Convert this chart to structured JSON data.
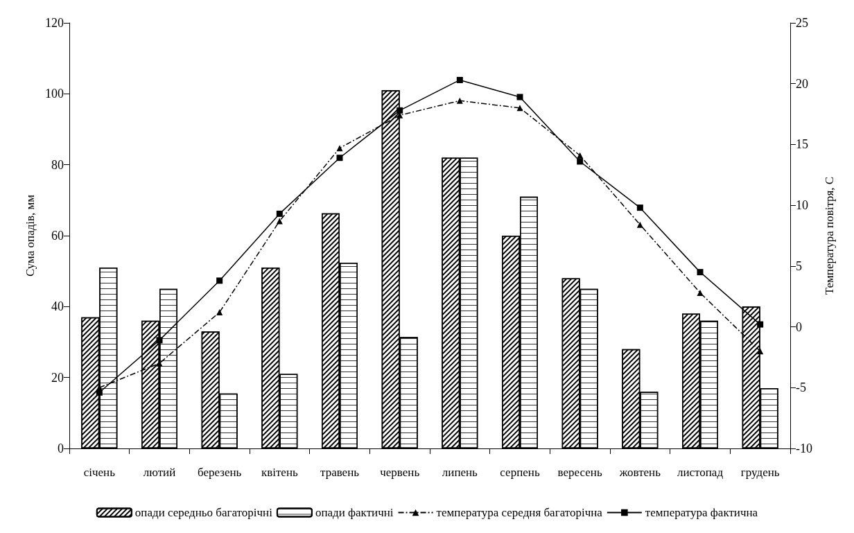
{
  "chart_data": {
    "type": "bar",
    "ylabel": "Сума опадів, мм",
    "y2label": "Температура повітря, С",
    "categories": [
      "січень",
      "лютий",
      "березень",
      "квітень",
      "травень",
      "червень",
      "липень",
      "серпень",
      "вересень",
      "жовтень",
      "листопад",
      "грудень"
    ],
    "series": [
      {
        "name": "опади середньо багаторічні",
        "axis": "y",
        "color": "#000000",
        "values": [
          37,
          36,
          33,
          51,
          66.3,
          101,
          82,
          60,
          48,
          28,
          38,
          40
        ]
      },
      {
        "name": "опади фактичні",
        "axis": "y",
        "color": "#000000",
        "values": [
          51,
          45,
          15.5,
          21,
          52.4,
          31.4,
          82,
          71,
          45,
          16,
          36,
          17
        ]
      },
      {
        "name": "температура середня багаторічна",
        "type": "line",
        "axis": "y2",
        "color": "#000000",
        "marker": "triangle",
        "line_style": "dashdot",
        "values": [
          -5,
          -3,
          1.2,
          8.7,
          14.7,
          17.4,
          18.6,
          18,
          14.1,
          8.4,
          2.8,
          -2
        ]
      },
      {
        "name": "температура фактична",
        "type": "line",
        "axis": "y2",
        "color": "#000000",
        "marker": "square",
        "line_style": "solid",
        "values": [
          -5.4,
          -1.1,
          3.8,
          9.3,
          13.9,
          17.8,
          20.3,
          18.9,
          13.6,
          9.8,
          4.5,
          0.2
        ]
      }
    ],
    "ylim": [
      0,
      120
    ],
    "yticks": [
      0,
      20,
      40,
      60,
      80,
      100,
      120
    ],
    "y2lim": [
      -10,
      25
    ],
    "y2ticks": [
      -10,
      -5,
      0,
      5,
      10,
      15,
      20,
      25
    ],
    "grid": false,
    "legend": "bottom"
  }
}
